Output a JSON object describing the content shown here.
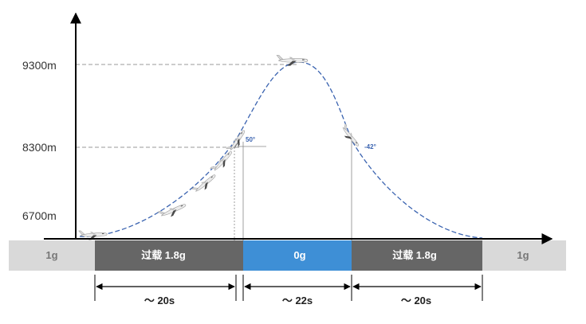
{
  "altitudes": [
    {
      "label": "9300m",
      "value": 9300
    },
    {
      "label": "8300m",
      "value": 8300
    },
    {
      "label": "6700m",
      "value": 6700
    }
  ],
  "phases": [
    {
      "label": "1g",
      "color": "#d9d9d9",
      "text_color": "#777777"
    },
    {
      "label": "过载 1.8g",
      "color": "#666666",
      "text_color": "#ffffff"
    },
    {
      "label": "0g",
      "color": "#3e8fd6",
      "text_color": "#ffffff"
    },
    {
      "label": "过载 1.8g",
      "color": "#666666",
      "text_color": "#ffffff"
    },
    {
      "label": "1g",
      "color": "#d9d9d9",
      "text_color": "#777777"
    }
  ],
  "angles": {
    "pull_up": "50°",
    "push_over": "-42°"
  },
  "durations": [
    "～ 20s",
    "～ 22s",
    "～ 20s"
  ],
  "colors": {
    "trajectory": "#3a63b0",
    "axis": "#000000",
    "guide": "#999999"
  },
  "icons": [
    "airplane-icon"
  ]
}
